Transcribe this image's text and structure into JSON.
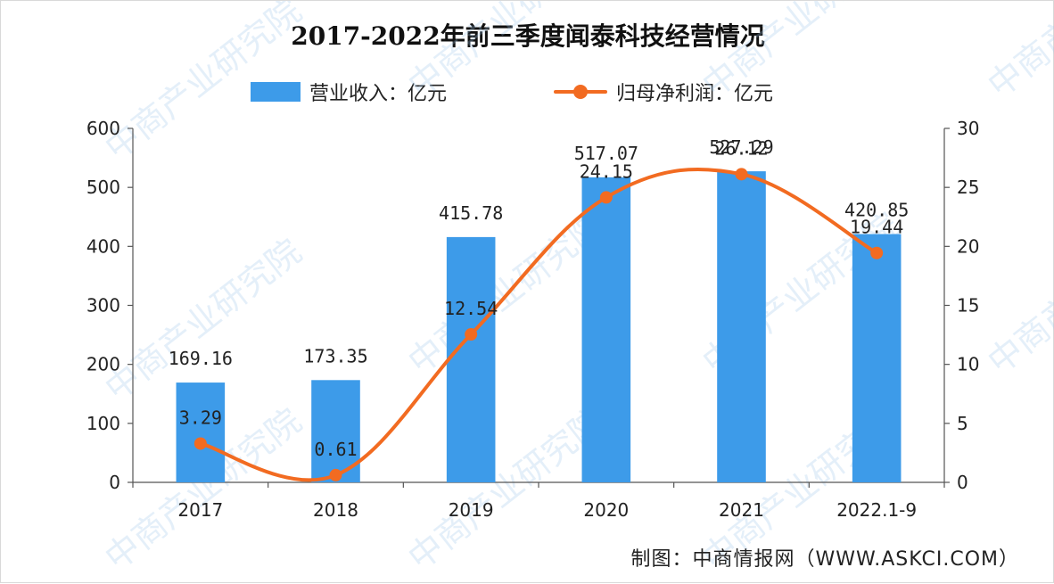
{
  "title": "2017-2022年前三季度闻泰科技经营情况",
  "source": "制图：中商情报网（WWW.ASKCI.COM）",
  "colors": {
    "bar": "#3d9be9",
    "line": "#f26b21",
    "axis": "#555555",
    "watermark": "#9fc5e8"
  },
  "watermark_text": "中商产业研究院",
  "chart_data": {
    "type": "bar",
    "categories": [
      "2017",
      "2018",
      "2019",
      "2020",
      "2021",
      "2022.1-9"
    ],
    "series": [
      {
        "name": "营业收入：亿元",
        "type": "bar",
        "axis": "left",
        "values": [
          169.16,
          173.35,
          415.78,
          517.07,
          527.29,
          420.85
        ],
        "labels": [
          "169.16",
          "173.35",
          "415.78",
          "517.07",
          "527.29",
          "420.85"
        ]
      },
      {
        "name": "归母净利润：亿元",
        "type": "line",
        "axis": "right",
        "values": [
          3.29,
          0.61,
          12.54,
          24.15,
          26.12,
          19.44
        ],
        "labels": [
          "3.29",
          "0.61",
          "12.54",
          "24.15",
          "26.12",
          "19.44"
        ]
      }
    ],
    "y_left": {
      "min": 0,
      "max": 600,
      "ticks": [
        "0",
        "100",
        "200",
        "300",
        "400",
        "500",
        "600"
      ]
    },
    "y_right": {
      "min": 0,
      "max": 30,
      "ticks": [
        "0",
        "5",
        "10",
        "15",
        "20",
        "25",
        "30"
      ]
    },
    "legend_position": "top",
    "grid": false
  }
}
